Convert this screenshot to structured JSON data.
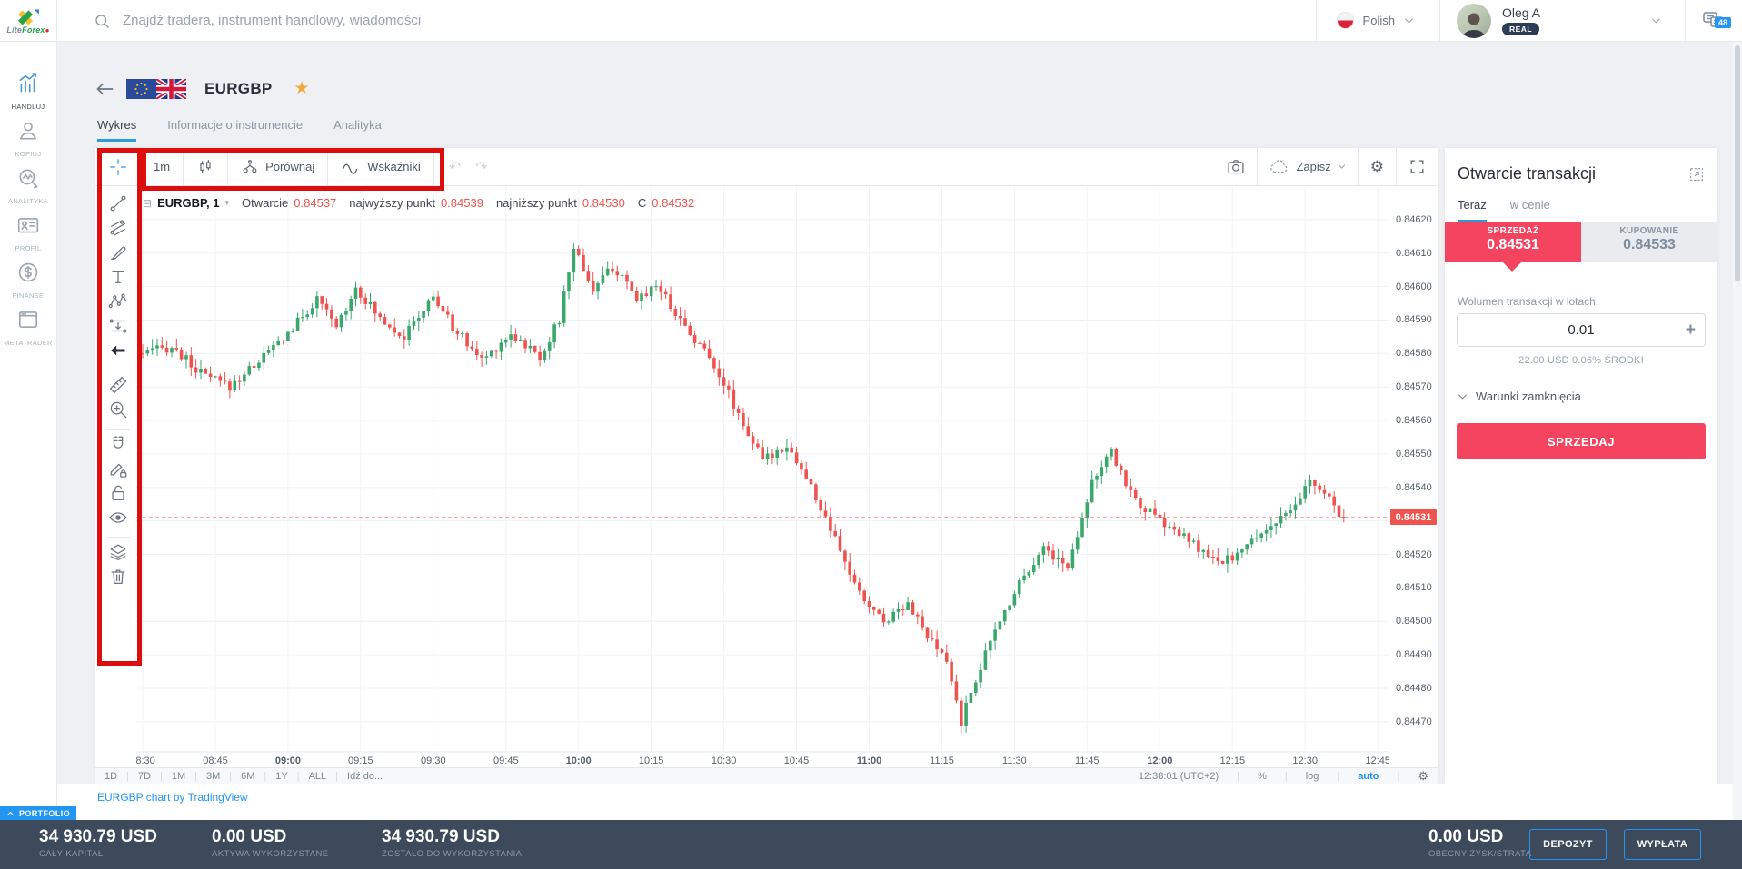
{
  "topbar": {
    "logo_lite": "Lite",
    "logo_forex": "Forex",
    "search_placeholder": "Znajdź tradera, instrument handlowy, wiadomości",
    "language": "Polish",
    "user_name": "Oleg A",
    "account_badge": "REAL",
    "notifications_count": "48"
  },
  "sidebar": {
    "items": [
      {
        "label": "HANDLUJ",
        "icon": "chart-bars",
        "active": true
      },
      {
        "label": "KOPIUJ",
        "icon": "person",
        "active": false
      },
      {
        "label": "ANALITYKA",
        "icon": "magnifier-pulse",
        "active": false
      },
      {
        "label": "PROFIL",
        "icon": "id-card",
        "active": false
      },
      {
        "label": "FINANSE",
        "icon": "dollar-circle",
        "active": false
      },
      {
        "label": "METATRADER",
        "icon": "app-window",
        "active": false
      }
    ]
  },
  "instrument": {
    "symbol": "EURGBP"
  },
  "page_tabs": [
    {
      "label": "Wykres",
      "active": true
    },
    {
      "label": "Informacje o instrumencie",
      "active": false
    },
    {
      "label": "Analityka",
      "active": false
    }
  ],
  "chart_toolbar": {
    "interval": "1m",
    "compare_label": "Porównaj",
    "indicators_label": "Wskaźniki",
    "save_label": "Zapisz"
  },
  "legend": {
    "series": "EURGBP, 1",
    "open_label": "Otwarcie",
    "open": "0.84537",
    "high_label": "najwyższy punkt",
    "high": "0.84539",
    "low_label": "najniższy punkt",
    "low": "0.84530",
    "close_label": "C",
    "close": "0.84532"
  },
  "drawing_tools": [
    {
      "name": "crosshair"
    },
    {
      "name": "trend-line"
    },
    {
      "name": "fib-lines"
    },
    {
      "name": "brush"
    },
    {
      "name": "text"
    },
    {
      "name": "xabcd-pattern"
    },
    {
      "name": "forecast"
    },
    {
      "name": "arrow-left",
      "sepAfter": true
    },
    {
      "name": "ruler"
    },
    {
      "name": "zoom-in",
      "sepAfter": true
    },
    {
      "name": "magnet"
    },
    {
      "name": "drawing-lock"
    },
    {
      "name": "lock"
    },
    {
      "name": "eye",
      "sepAfter": true
    },
    {
      "name": "layers"
    },
    {
      "name": "trash"
    }
  ],
  "chart_footer": {
    "ranges": [
      "1D",
      "7D",
      "1M",
      "3M",
      "6M",
      "1Y",
      "ALL"
    ],
    "goto": "Idź do...",
    "clock": "12:38:01 (UTC+2)",
    "percent": "%",
    "log": "log",
    "auto": "auto"
  },
  "attribution": "EURGBP chart by TradingView",
  "order_panel": {
    "title": "Otwarcie transakcji",
    "tabs": [
      {
        "label": "Teraz",
        "active": true
      },
      {
        "label": "w cenie",
        "active": false
      }
    ],
    "sell_label": "SPRZEDAŻ",
    "sell_price": "0.84531",
    "buy_label": "KUPOWANIE",
    "buy_price": "0.84533",
    "volume_label": "Wolumen transakcji w lotach",
    "volume_value": "0.01",
    "volume_info": "22.00 USD   0.06% ŚRODKI",
    "close_conditions_label": "Warunki zamknięcia",
    "submit_label": "SPRZEDAJ"
  },
  "portfolio_bar": {
    "tab_label": "PORTFOLIO",
    "stats": [
      {
        "value": "34 930.79 USD",
        "label": "CAŁY KAPITAŁ"
      },
      {
        "value": "0.00 USD",
        "label": "AKTYWA WYKORZYSTANE"
      },
      {
        "value": "34 930.79 USD",
        "label": "ZOSTAŁO DO WYKORZYSTANIA"
      }
    ],
    "pl": {
      "value": "0.00 USD",
      "label": "OBECNY ZYSK/STRATA"
    },
    "buttons": [
      {
        "label": "DEPOZYT"
      },
      {
        "label": "WYPŁATA"
      }
    ]
  },
  "chart_data": {
    "type": "candlestick",
    "title": "EURGBP, 1",
    "symbol": "EURGBP",
    "interval_minutes": 1,
    "grid": true,
    "up_color": "#3aa76d",
    "down_color": "#ef5350",
    "current_price": 0.84531,
    "current_price_color": "#ef5350",
    "last_ohlc": {
      "open": 0.84537,
      "high": 0.84539,
      "low": 0.8453,
      "close": 0.84532
    },
    "y_range": [
      0.84461,
      0.8463
    ],
    "price_ticks": [
      0.8447,
      0.8448,
      0.8449,
      0.845,
      0.8451,
      0.8452,
      0.8453,
      0.8454,
      0.8455,
      0.8456,
      0.8457,
      0.8458,
      0.8459,
      0.846,
      0.8461,
      0.8462
    ],
    "time_labels": [
      "08:30",
      "08:45",
      "09:00",
      "09:15",
      "09:30",
      "09:45",
      "10:00",
      "10:15",
      "10:30",
      "10:45",
      "11:00",
      "11:15",
      "11:30",
      "11:45",
      "12:00",
      "12:15",
      "12:30",
      "12:45"
    ],
    "session_minutes": 255,
    "last_minute": 248,
    "price_path_anchors": [
      [
        0,
        0.8458
      ],
      [
        6,
        0.84582
      ],
      [
        12,
        0.84574
      ],
      [
        18,
        0.8457
      ],
      [
        24,
        0.84578
      ],
      [
        30,
        0.84586
      ],
      [
        36,
        0.84596
      ],
      [
        40,
        0.84588
      ],
      [
        44,
        0.846
      ],
      [
        48,
        0.84592
      ],
      [
        54,
        0.84585
      ],
      [
        60,
        0.84597
      ],
      [
        64,
        0.84588
      ],
      [
        70,
        0.84578
      ],
      [
        76,
        0.84586
      ],
      [
        82,
        0.84579
      ],
      [
        86,
        0.8459
      ],
      [
        89,
        0.84612
      ],
      [
        93,
        0.84599
      ],
      [
        97,
        0.84606
      ],
      [
        102,
        0.84596
      ],
      [
        106,
        0.84601
      ],
      [
        112,
        0.84588
      ],
      [
        118,
        0.84577
      ],
      [
        124,
        0.84559
      ],
      [
        128,
        0.84548
      ],
      [
        133,
        0.84553
      ],
      [
        138,
        0.8454
      ],
      [
        143,
        0.84524
      ],
      [
        148,
        0.84508
      ],
      [
        153,
        0.845
      ],
      [
        158,
        0.84506
      ],
      [
        162,
        0.84495
      ],
      [
        166,
        0.84488
      ],
      [
        169,
        0.8447
      ],
      [
        172,
        0.84483
      ],
      [
        176,
        0.84497
      ],
      [
        181,
        0.84512
      ],
      [
        186,
        0.84522
      ],
      [
        191,
        0.84516
      ],
      [
        196,
        0.84542
      ],
      [
        200,
        0.8455
      ],
      [
        205,
        0.84536
      ],
      [
        210,
        0.8453
      ],
      [
        216,
        0.84524
      ],
      [
        222,
        0.84517
      ],
      [
        227,
        0.84521
      ],
      [
        232,
        0.84528
      ],
      [
        237,
        0.84532
      ],
      [
        241,
        0.84542
      ],
      [
        245,
        0.84536
      ],
      [
        248,
        0.84531
      ]
    ]
  }
}
